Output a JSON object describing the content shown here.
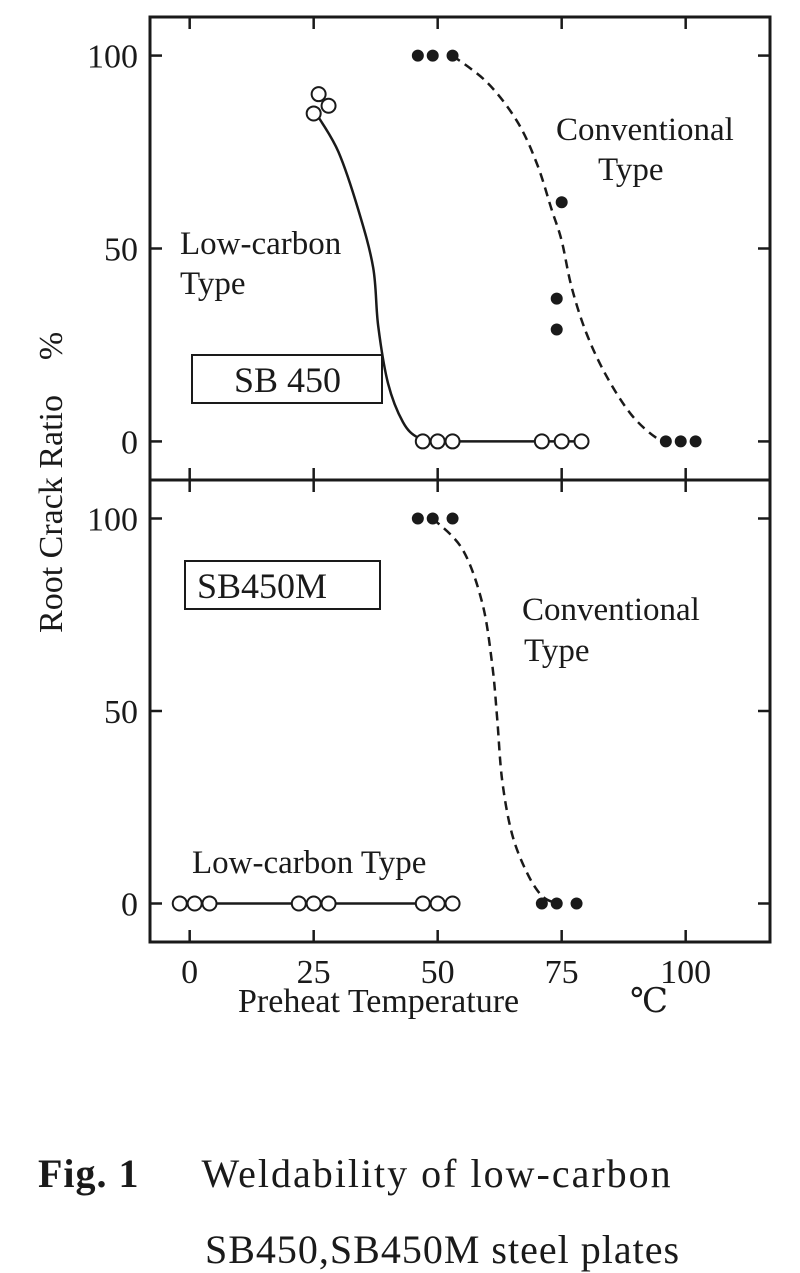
{
  "chart_data": {
    "type": "scatter",
    "xlabel": "Preheat Temperature",
    "xunit": "℃",
    "ylabel": "Root Crack Ratio",
    "yunit": "%",
    "xticks": [
      "0",
      "25",
      "50",
      "75",
      "100"
    ],
    "xlim": [
      -8,
      117
    ],
    "yticks": [
      "0",
      "50",
      "100"
    ],
    "ylim": [
      -10,
      110
    ],
    "panels": [
      {
        "label": "SB 450",
        "series": [
          {
            "name": "Low-carbon Type",
            "marker": "open-circle",
            "line": "solid",
            "points": [
              [
                25,
                85
              ],
              [
                26,
                90
              ],
              [
                28,
                87
              ],
              [
                47,
                0
              ],
              [
                50,
                0
              ],
              [
                53,
                0
              ],
              [
                71,
                0
              ],
              [
                75,
                0
              ],
              [
                79,
                0
              ]
            ],
            "curve": [
              [
                26,
                84
              ],
              [
                30,
                75
              ],
              [
                34,
                60
              ],
              [
                37,
                45
              ],
              [
                38,
                30
              ],
              [
                40,
                15
              ],
              [
                43,
                5
              ],
              [
                46,
                1
              ],
              [
                50,
                0
              ],
              [
                53,
                0
              ],
              [
                79,
                0
              ]
            ]
          },
          {
            "name": "Conventional Type",
            "marker": "filled-circle",
            "line": "dashed",
            "points": [
              [
                46,
                100
              ],
              [
                49,
                100
              ],
              [
                53,
                100
              ],
              [
                75,
                62
              ],
              [
                74,
                37
              ],
              [
                74,
                29
              ],
              [
                96,
                0
              ],
              [
                99,
                0
              ],
              [
                102,
                0
              ]
            ],
            "curve": [
              [
                53,
                100
              ],
              [
                60,
                93
              ],
              [
                66,
                83
              ],
              [
                70,
                72
              ],
              [
                73,
                60
              ],
              [
                75,
                52
              ],
              [
                77,
                40
              ],
              [
                80,
                28
              ],
              [
                84,
                17
              ],
              [
                89,
                7
              ],
              [
                94,
                1
              ],
              [
                97,
                0
              ]
            ]
          }
        ]
      },
      {
        "label": "SB450M",
        "series": [
          {
            "name": "Low-carbon Type",
            "marker": "open-circle",
            "line": "solid",
            "points": [
              [
                -2,
                0
              ],
              [
                1,
                0
              ],
              [
                4,
                0
              ],
              [
                22,
                0
              ],
              [
                25,
                0
              ],
              [
                28,
                0
              ],
              [
                47,
                0
              ],
              [
                50,
                0
              ],
              [
                53,
                0
              ]
            ],
            "curve": [
              [
                -2,
                0
              ],
              [
                53,
                0
              ]
            ]
          },
          {
            "name": "Conventional Type",
            "marker": "filled-circle",
            "line": "dashed",
            "points": [
              [
                46,
                100
              ],
              [
                49,
                100
              ],
              [
                53,
                100
              ],
              [
                71,
                0
              ],
              [
                74,
                0
              ],
              [
                78,
                0
              ]
            ],
            "curve": [
              [
                49,
                100
              ],
              [
                55,
                92
              ],
              [
                59,
                78
              ],
              [
                61,
                62
              ],
              [
                62,
                48
              ],
              [
                63,
                32
              ],
              [
                65,
                18
              ],
              [
                68,
                8
              ],
              [
                71,
                2
              ],
              [
                74,
                0
              ]
            ]
          }
        ]
      }
    ],
    "annotations": {
      "top_conventional": [
        "Conventional",
        "Type"
      ],
      "top_lowcarbon": [
        "Low-carbon",
        "Type"
      ],
      "bottom_conventional": [
        "Conventional",
        "Type"
      ],
      "bottom_lowcarbon": "Low-carbon Type"
    }
  },
  "caption": {
    "fig": "Fig. 1",
    "line1": "Weldability of low-carbon",
    "line2": "SB450,SB450M steel plates"
  }
}
